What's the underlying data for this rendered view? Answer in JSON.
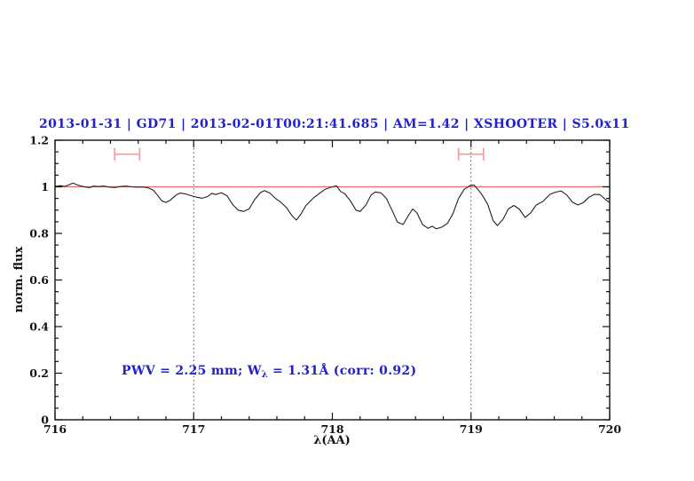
{
  "title": "2013-01-31 | GD71 | 2013-02-01T00:21:41.685 | AM=1.42 | XSHOOTER | S5.0x11",
  "annotation": {
    "prefix": "PWV = 2.25 mm; W",
    "subscript": "λ",
    "suffix": " = 1.31Å (corr: 0.92)"
  },
  "colors": {
    "background": "#ffffff",
    "title_text": "#2222cc",
    "annotation_text": "#2222cc",
    "axis": "#111111",
    "text": "#111111",
    "spectrum": "#222222",
    "continuum_line": "#e86e6e",
    "marker": "#f2a2a2",
    "dotted_line": "#3a3a3a"
  },
  "chart_data": {
    "type": "line",
    "title": "2013-01-31 | GD71 | 2013-02-01T00:21:41.685 | AM=1.42 | XSHOOTER | S5.0x11",
    "xlabel": "λ(AA)",
    "ylabel": "norm. flux",
    "xlim": [
      716,
      720
    ],
    "ylim": [
      0,
      1.2
    ],
    "x_ticks": [
      716,
      717,
      718,
      719,
      720
    ],
    "x_tick_labels": [
      "716",
      "717",
      "718",
      "719",
      "720"
    ],
    "x_minor_step": 0.2,
    "y_ticks": [
      0,
      0.2,
      0.4,
      0.6,
      0.8,
      1,
      1.2
    ],
    "y_tick_labels": [
      "0",
      "0.2",
      "0.4",
      "0.6",
      "0.8",
      "1",
      "1.2"
    ],
    "y_minor_step": 0.05,
    "grid": false,
    "legend": false,
    "dotted_vlines": [
      717,
      719
    ],
    "continuum_level": 1.0,
    "annotation_text": "PWV = 2.25 mm; Wλ = 1.31Å (corr: 0.92)",
    "window_markers": [
      {
        "x_min": 716.43,
        "x_max": 716.61,
        "y": 1.14,
        "cap_half_height": 0.027
      },
      {
        "x_min": 718.91,
        "x_max": 719.09,
        "y": 1.14,
        "cap_half_height": 0.027
      }
    ],
    "series": [
      {
        "name": "normalized spectrum",
        "x": [
          716.0,
          716.04,
          716.07,
          716.1,
          716.13,
          716.16,
          716.19,
          716.22,
          716.25,
          716.28,
          716.31,
          716.35,
          716.39,
          716.43,
          716.47,
          716.51,
          716.55,
          716.59,
          716.63,
          716.67,
          716.71,
          716.74,
          716.77,
          716.8,
          716.83,
          716.87,
          716.9,
          716.94,
          716.98,
          717.02,
          717.06,
          717.1,
          717.13,
          717.16,
          717.2,
          717.24,
          717.28,
          717.32,
          717.36,
          717.4,
          717.44,
          717.48,
          717.51,
          717.55,
          717.59,
          717.63,
          717.67,
          717.71,
          717.74,
          717.77,
          717.81,
          717.86,
          717.91,
          717.95,
          718.0,
          718.03,
          718.06,
          718.09,
          718.13,
          718.17,
          718.2,
          718.24,
          718.28,
          718.31,
          718.35,
          718.39,
          718.43,
          718.47,
          718.51,
          718.55,
          718.58,
          718.61,
          718.65,
          718.69,
          718.72,
          718.75,
          718.79,
          718.83,
          718.87,
          718.91,
          718.95,
          718.99,
          719.02,
          719.05,
          719.08,
          719.12,
          719.16,
          719.19,
          719.23,
          719.27,
          719.31,
          719.35,
          719.39,
          719.43,
          719.47,
          719.52,
          719.57,
          719.61,
          719.65,
          719.69,
          719.73,
          719.77,
          719.81,
          719.85,
          719.89,
          719.93,
          719.97,
          720.0
        ],
        "y": [
          1.002,
          1.005,
          1.002,
          1.008,
          1.016,
          1.008,
          1.003,
          0.999,
          0.997,
          1.003,
          1.001,
          1.003,
          0.999,
          0.997,
          1.001,
          1.003,
          1.0,
          0.999,
          0.999,
          0.996,
          0.985,
          0.963,
          0.94,
          0.933,
          0.942,
          0.963,
          0.973,
          0.97,
          0.962,
          0.956,
          0.951,
          0.958,
          0.972,
          0.967,
          0.975,
          0.962,
          0.925,
          0.9,
          0.894,
          0.905,
          0.945,
          0.975,
          0.984,
          0.973,
          0.95,
          0.933,
          0.91,
          0.875,
          0.857,
          0.88,
          0.92,
          0.95,
          0.973,
          0.99,
          1.0,
          1.004,
          0.98,
          0.97,
          0.94,
          0.9,
          0.894,
          0.92,
          0.965,
          0.978,
          0.974,
          0.95,
          0.9,
          0.848,
          0.838,
          0.878,
          0.905,
          0.888,
          0.838,
          0.822,
          0.831,
          0.82,
          0.827,
          0.843,
          0.885,
          0.95,
          0.988,
          1.004,
          1.008,
          0.988,
          0.965,
          0.925,
          0.855,
          0.834,
          0.86,
          0.905,
          0.92,
          0.903,
          0.868,
          0.888,
          0.922,
          0.938,
          0.968,
          0.977,
          0.982,
          0.965,
          0.935,
          0.922,
          0.932,
          0.955,
          0.968,
          0.966,
          0.945,
          0.932
        ]
      }
    ]
  }
}
